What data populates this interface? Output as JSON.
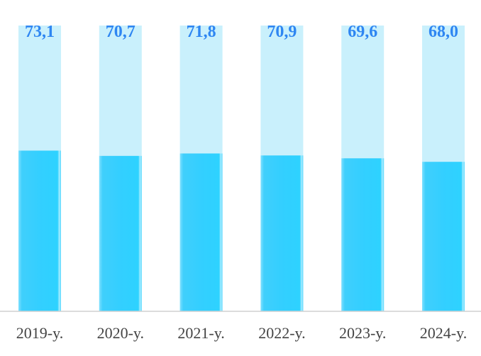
{
  "chart_data": {
    "type": "bar",
    "title": "",
    "xlabel": "",
    "ylabel": "",
    "categories": [
      "2019-y.",
      "2020-y.",
      "2021-y.",
      "2022-y.",
      "2023-y.",
      "2024-y."
    ],
    "values": [
      73.1,
      70.7,
      71.8,
      70.9,
      69.6,
      68.0
    ],
    "value_labels": [
      "73,1",
      "70,7",
      "71,8",
      "70,9",
      "69,6",
      "68,0"
    ],
    "ylim": [
      0,
      130
    ],
    "grid": false,
    "legend": "none",
    "colors": {
      "fill": "#33CFFF",
      "track": "#C9F0FC",
      "label": "#2E86F2",
      "axis": "#D0D0D0"
    }
  }
}
